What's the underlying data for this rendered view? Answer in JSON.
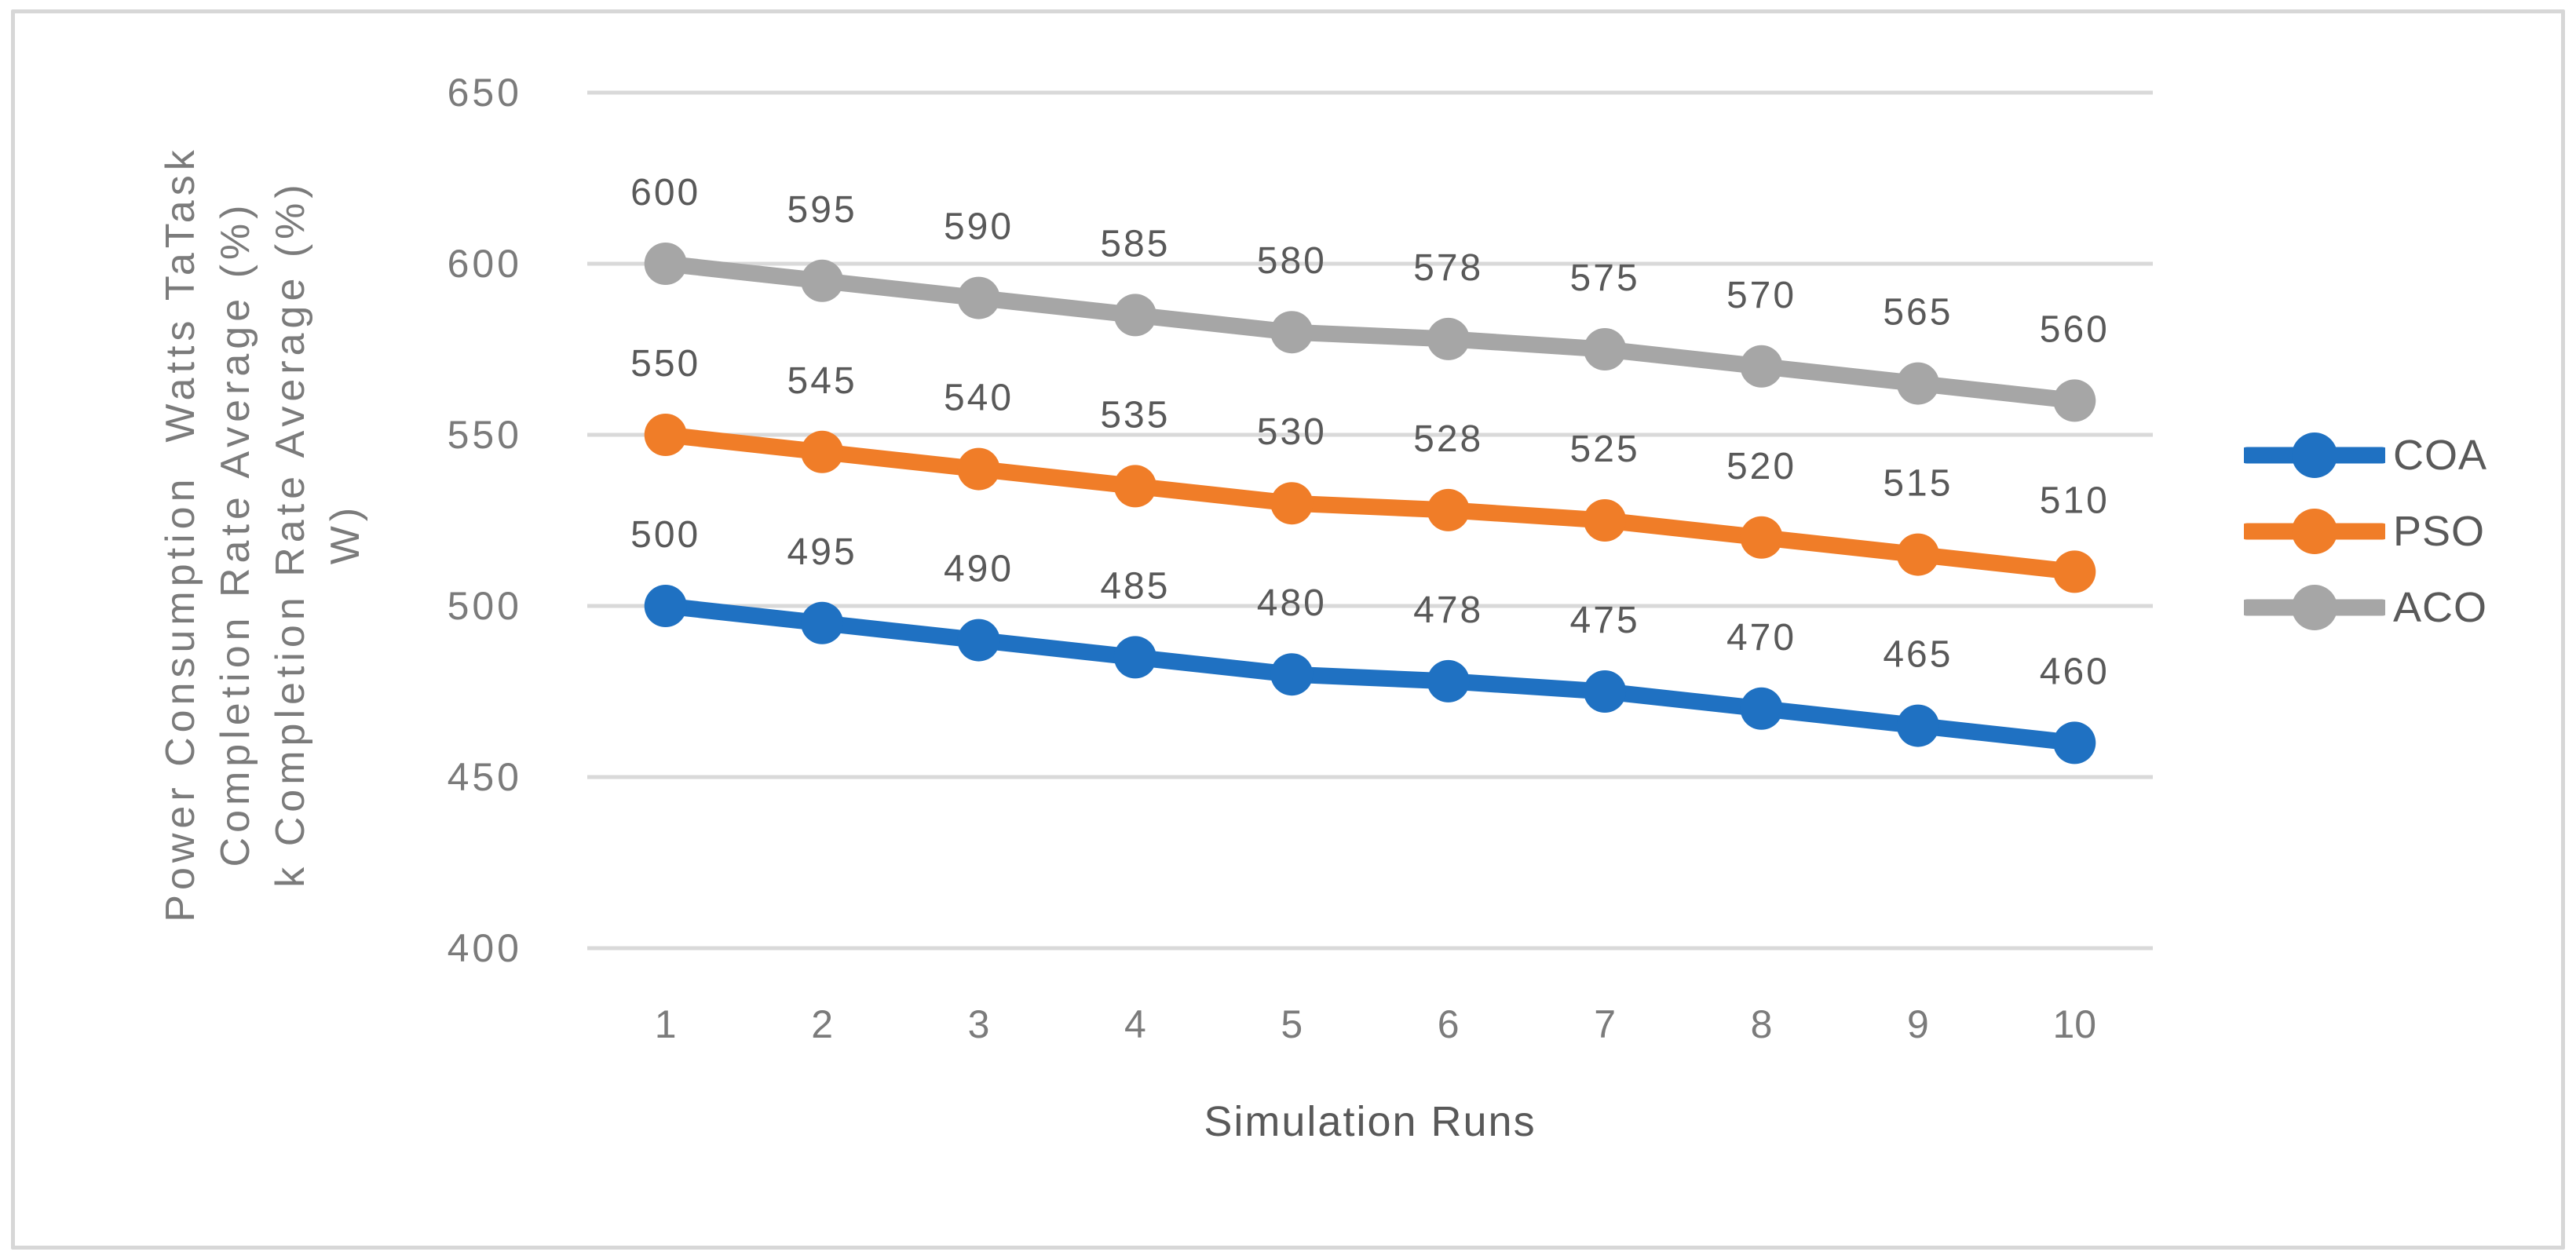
{
  "chart_data": {
    "type": "line",
    "title": "",
    "xlabel": "Simulation Runs",
    "ylabel_lines": [
      "Power Consumption  Watts TaTask",
      "Completion Rate Average (%)",
      "k Completion Rate Average (%)",
      "W)"
    ],
    "x": [
      1,
      2,
      3,
      4,
      5,
      6,
      7,
      8,
      9,
      10
    ],
    "series": [
      {
        "name": "COA",
        "color": "#1F71C2",
        "values": [
          500,
          495,
          490,
          485,
          480,
          478,
          475,
          470,
          465,
          460
        ]
      },
      {
        "name": "PSO",
        "color": "#F07D28",
        "values": [
          550,
          545,
          540,
          535,
          530,
          528,
          525,
          520,
          515,
          510
        ]
      },
      {
        "name": "ACO",
        "color": "#A6A6A6",
        "values": [
          600,
          595,
          590,
          585,
          580,
          578,
          575,
          570,
          565,
          560
        ]
      }
    ],
    "ylim": [
      400,
      650
    ],
    "yticks": [
      400,
      450,
      500,
      550,
      600,
      650
    ],
    "grid": true,
    "data_labels": true,
    "legend_position": "right"
  },
  "colors": {
    "gridline": "#D9D9D9",
    "frame_border": "#D7D7D7",
    "tick_text": "#7B7B7B",
    "data_label_text": "#595959",
    "axis_title_text": "#595959",
    "background": "#FFFFFF"
  }
}
